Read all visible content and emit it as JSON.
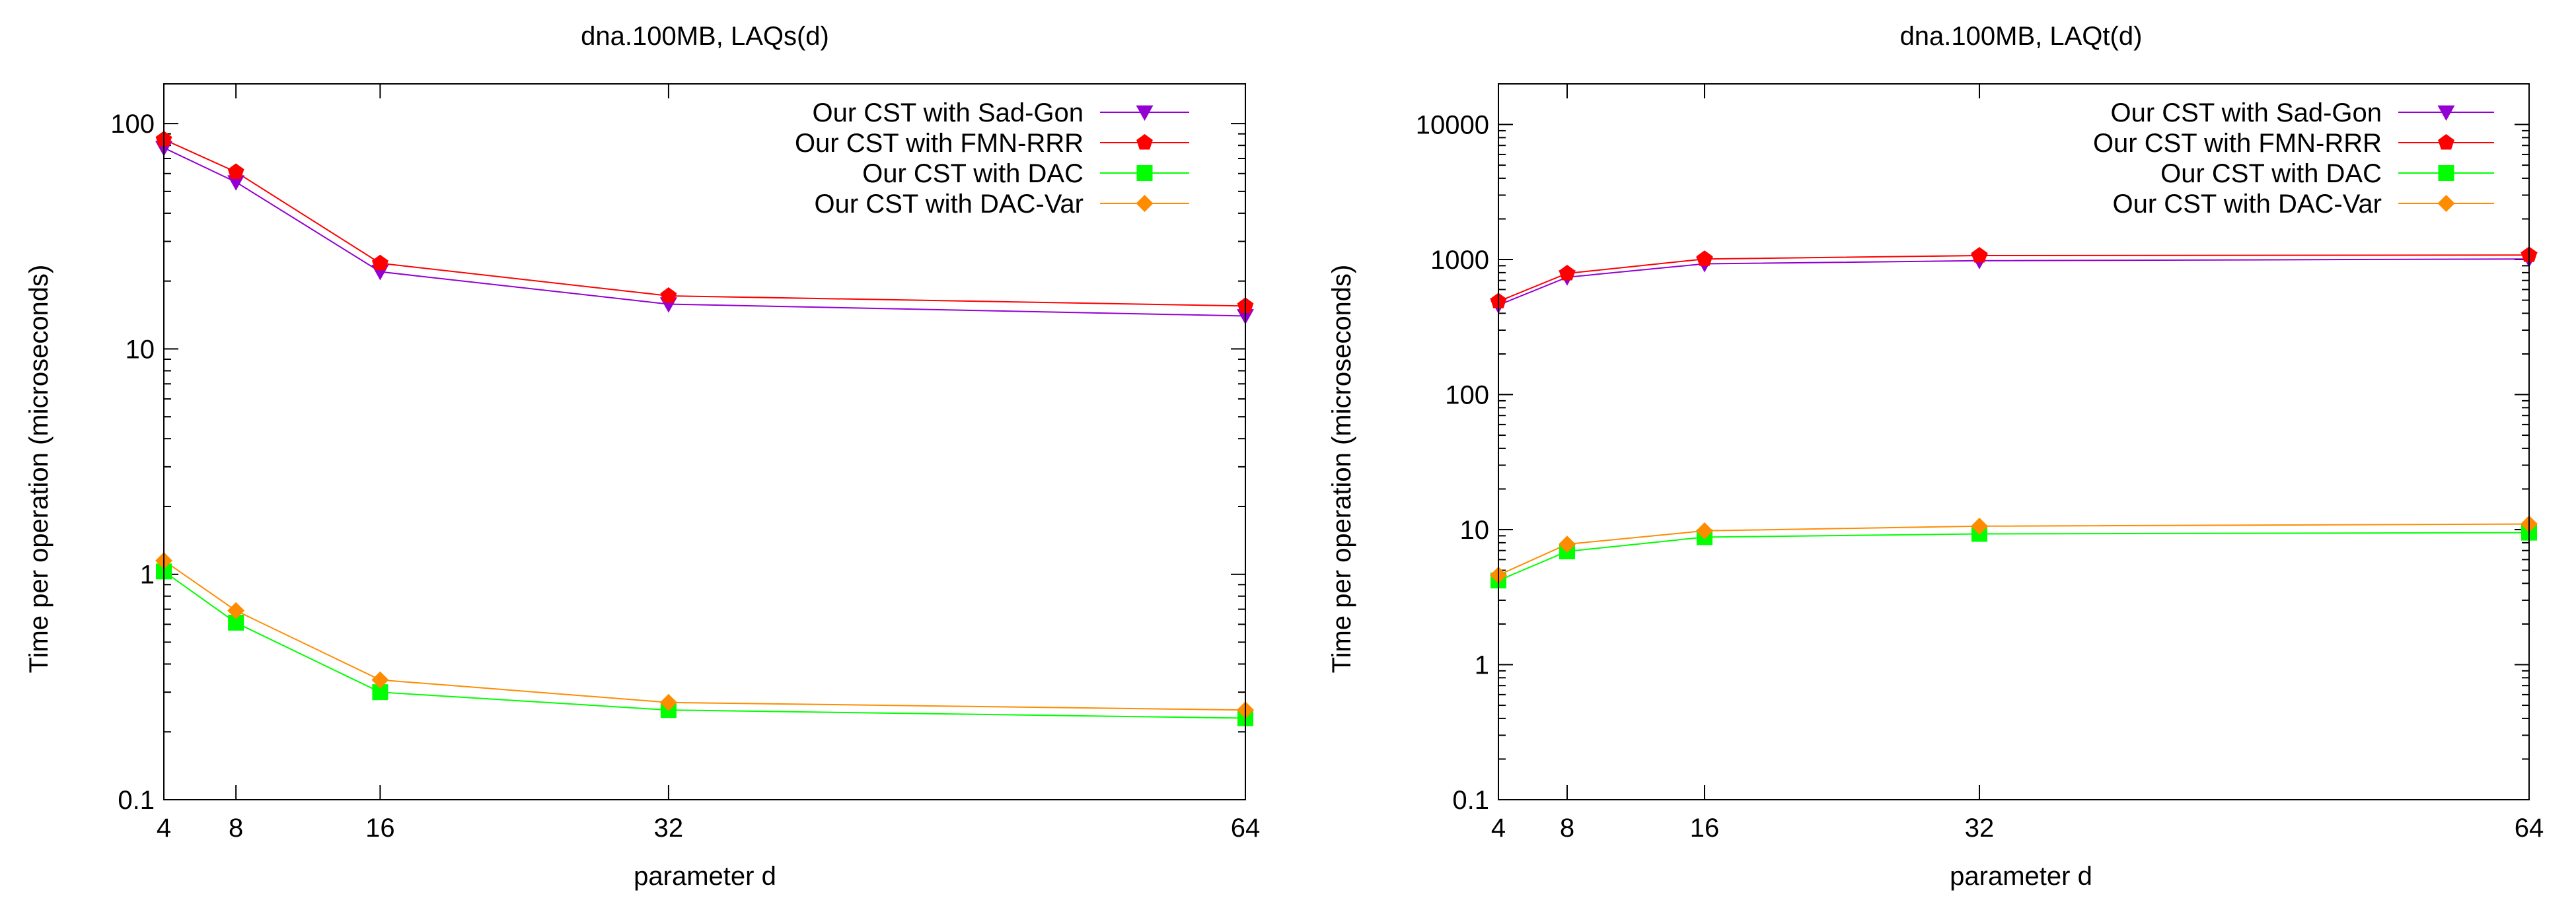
{
  "chart_data": [
    {
      "type": "line",
      "title": "dna.100MB, LAQs(d)",
      "xlabel": "parameter d",
      "ylabel": "Time per operation (microseconds)",
      "yscale": "log",
      "ylim": [
        0.1,
        150
      ],
      "xlim": [
        4,
        64
      ],
      "xticks": [
        4,
        8,
        16,
        32,
        64
      ],
      "yticks": [
        0.1,
        1,
        10,
        100
      ],
      "ytick_labels": [
        "0.1",
        "1",
        "10",
        "100"
      ],
      "legend_position": "top-right",
      "x": [
        4,
        8,
        16,
        32,
        64
      ],
      "series": [
        {
          "name": "Our CST with Sad-Gon",
          "color": "#9400d3",
          "marker": "triangle-down",
          "values": [
            78,
            55,
            22,
            15.8,
            14
          ]
        },
        {
          "name": "Our CST with FMN-RRR",
          "color": "#ff0000",
          "marker": "pentagon",
          "values": [
            85,
            61,
            24,
            17.2,
            15.5
          ]
        },
        {
          "name": "Our CST with DAC",
          "color": "#00ff00",
          "marker": "square",
          "values": [
            1.03,
            0.61,
            0.3,
            0.25,
            0.23
          ]
        },
        {
          "name": "Our CST with DAC-Var",
          "color": "#ff8c00",
          "marker": "diamond",
          "values": [
            1.15,
            0.69,
            0.34,
            0.27,
            0.25
          ]
        }
      ]
    },
    {
      "type": "line",
      "title": "dna.100MB, LAQt(d)",
      "xlabel": "parameter d",
      "ylabel": "Time per operation (microseconds)",
      "yscale": "log",
      "ylim": [
        0.1,
        20000
      ],
      "xlim": [
        4,
        64
      ],
      "xticks": [
        4,
        8,
        16,
        32,
        64
      ],
      "yticks": [
        0.1,
        1,
        10,
        100,
        1000,
        10000
      ],
      "ytick_labels": [
        "0.1",
        "1",
        "10",
        "100",
        "1000",
        "10000"
      ],
      "legend_position": "top-right",
      "x": [
        4,
        8,
        16,
        32,
        64
      ],
      "series": [
        {
          "name": "Our CST with Sad-Gon",
          "color": "#9400d3",
          "marker": "triangle-down",
          "values": [
            460,
            740,
            930,
            980,
            1010
          ]
        },
        {
          "name": "Our CST with FMN-RRR",
          "color": "#ff0000",
          "marker": "pentagon",
          "values": [
            490,
            790,
            1010,
            1070,
            1080
          ]
        },
        {
          "name": "Our CST with DAC",
          "color": "#00ff00",
          "marker": "square",
          "values": [
            4.2,
            6.9,
            8.8,
            9.3,
            9.5
          ]
        },
        {
          "name": "Our CST with DAC-Var",
          "color": "#ff8c00",
          "marker": "diamond",
          "values": [
            4.6,
            7.8,
            9.8,
            10.6,
            11
          ]
        }
      ]
    }
  ]
}
